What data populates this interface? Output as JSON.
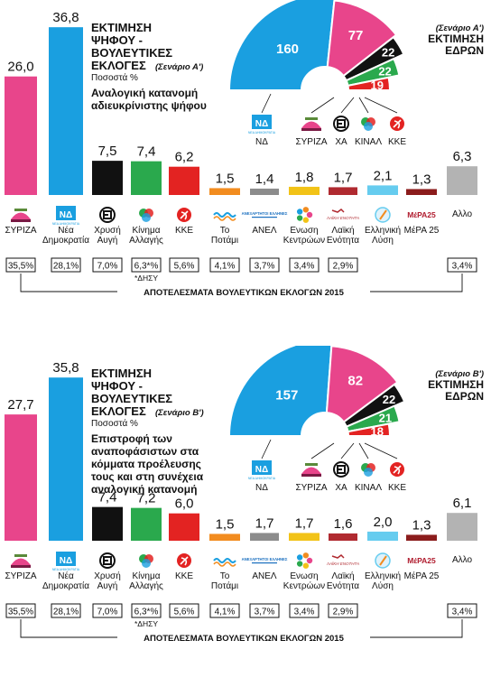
{
  "colors": {
    "syriza": "#e8458b",
    "nd": "#1a9fe0",
    "xa": "#111111",
    "kinal": "#2aa94d",
    "kke": "#e32322",
    "potami": "#f28c1f",
    "anel": "#8c8c8c",
    "enosi": "#f2c317",
    "le": "#b02a30",
    "el": "#66ccef",
    "mera25": "#8b1c1c",
    "allo": "#b3b3b3"
  },
  "parties": [
    {
      "key": "syriza",
      "label": "ΣΥΡΙΖΑ",
      "icon": "syriza-logo-icon"
    },
    {
      "key": "nd",
      "label": "Νέα Δημοκρατία",
      "icon": "nd-logo-icon"
    },
    {
      "key": "xa",
      "label": "Χρυσή Αυγή",
      "icon": "xa-logo-icon"
    },
    {
      "key": "kinal",
      "label": "Κίνημα Αλλαγής",
      "icon": "kinal-logo-icon"
    },
    {
      "key": "kke",
      "label": "ΚΚΕ",
      "icon": "kke-logo-icon"
    },
    {
      "key": "potami",
      "label": "Το Ποτάμι",
      "icon": "potami-logo-icon"
    },
    {
      "key": "anel",
      "label": "ΑΝΕΛ",
      "icon": "anel-logo-icon"
    },
    {
      "key": "enosi",
      "label": "Ενωση Κεντρώων",
      "icon": "enosi-logo-icon"
    },
    {
      "key": "le",
      "label": "Λαϊκή Ενότητα",
      "icon": "le-logo-icon"
    },
    {
      "key": "el",
      "label": "Ελληνική Λύση",
      "icon": "el-logo-icon"
    },
    {
      "key": "mera25",
      "label": "ΜέΡΑ 25",
      "icon": "mera25-logo-icon"
    },
    {
      "key": "allo",
      "label": "Αλλο",
      "icon": ""
    }
  ],
  "logo_text": {
    "nd": "ΝΔ",
    "nd_small": "ΝΕΑ ΔΗΜΟΚΡΑΤΙΑ",
    "anel": "ΑΝΕΞΑΡΤΗΤΟΙ ΕΛΛΗΝΕΣ",
    "le": "ΛΑΪΚΗ ΕΝΟΤΗΤΑ",
    "mera": "ΜέΡΑ25"
  },
  "results_2015": [
    "35,5%",
    "28,1%",
    "7,0%",
    "6,3*%",
    "5,6%",
    "4,1%",
    "3,7%",
    "3,4%",
    "2,9%",
    "",
    "",
    "3,4%"
  ],
  "results_footnote": "*ΔΗΣΥ",
  "results_caption": "ΑΠΟΤΕΛΕΣΜΑΤΑ ΒΟΥΛΕΥΤΙΚΩΝ ΕΚΛΟΓΩΝ 2015",
  "panels": [
    {
      "title": "ΕΚΤΙΜΗΣΗ ΨΗΦΟΥ - ΒΟΥΛΕΥΤΙΚΕΣ ΕΚΛΟΓΕΣ",
      "scenario": "(Σενάριο Α')",
      "unit": "Ποσοστά %",
      "note": "Αναλογική κατανομή αδιευκρίνιστης ψήφου",
      "seats_title_scenario": "(Σενάριο Α')",
      "seats_title": "ΕΚΤΙΜΗΣΗ ΕΔΡΩΝ",
      "seat_labels": [
        "ΝΔ",
        "ΣΥΡΙΖΑ",
        "ΧΑ",
        "ΚΙΝΑΛ",
        "ΚΚΕ"
      ]
    },
    {
      "title": "ΕΚΤΙΜΗΣΗ ΨΗΦΟΥ - ΒΟΥΛΕΥΤΙΚΕΣ ΕΚΛΟΓΕΣ",
      "scenario": "(Σενάριο Β')",
      "unit": "Ποσοστά %",
      "note": "Επιστροφή των αναποφάσιστων στα κόμματα προέλευσης τους και στη συνέχεια αναλογική κατανομή",
      "seats_title_scenario": "(Σενάριο Β')",
      "seats_title": "ΕΚΤΙΜΗΣΗ ΕΔΡΩΝ",
      "seat_labels": [
        "ΝΔ",
        "ΣΥΡΙΖΑ",
        "ΧΑ",
        "ΚΙΝΑΛ",
        "ΚΚΕ"
      ]
    }
  ],
  "chart_data": [
    {
      "type": "bar",
      "title": "ΕΚΤΙΜΗΣΗ ΨΗΦΟΥ - ΒΟΥΛΕΥΤΙΚΕΣ ΕΚΛΟΓΕΣ (Σενάριο Α')",
      "ylabel": "Ποσοστά %",
      "categories": [
        "ΣΥΡΙΖΑ",
        "Νέα Δημοκρατία",
        "Χρυσή Αυγή",
        "Κίνημα Αλλαγής",
        "ΚΚΕ",
        "Το Ποτάμι",
        "ΑΝΕΛ",
        "Ενωση Κεντρώων",
        "Λαϊκή Ενότητα",
        "Ελληνική Λύση",
        "ΜέΡΑ 25",
        "Αλλο"
      ],
      "values": [
        26.0,
        36.8,
        7.5,
        7.4,
        6.2,
        1.5,
        1.4,
        1.8,
        1.7,
        2.1,
        1.3,
        6.3
      ],
      "value_labels": [
        "26,0",
        "36,8",
        "7,5",
        "7,4",
        "6,2",
        "1,5",
        "1,4",
        "1,8",
        "1,7",
        "2,1",
        "1,3",
        "6,3"
      ],
      "ylim": [
        0,
        40
      ]
    },
    {
      "type": "pie",
      "title": "ΕΚΤΙΜΗΣΗ ΕΔΡΩΝ (Σενάριο Α')",
      "categories": [
        "ΝΔ",
        "ΣΥΡΙΖΑ",
        "ΧΑ",
        "ΚΙΝΑΛ",
        "ΚΚΕ"
      ],
      "values": [
        160,
        77,
        22,
        22,
        19
      ]
    },
    {
      "type": "bar",
      "title": "ΕΚΤΙΜΗΣΗ ΨΗΦΟΥ - ΒΟΥΛΕΥΤΙΚΕΣ ΕΚΛΟΓΕΣ (Σενάριο Β')",
      "ylabel": "Ποσοστά %",
      "categories": [
        "ΣΥΡΙΖΑ",
        "Νέα Δημοκρατία",
        "Χρυσή Αυγή",
        "Κίνημα Αλλαγής",
        "ΚΚΕ",
        "Το Ποτάμι",
        "ΑΝΕΛ",
        "Ενωση Κεντρώων",
        "Λαϊκή Ενότητα",
        "Ελληνική Λύση",
        "ΜέΡΑ 25",
        "Αλλο"
      ],
      "values": [
        27.7,
        35.8,
        7.4,
        7.2,
        6.0,
        1.5,
        1.7,
        1.7,
        1.6,
        2.0,
        1.3,
        6.1
      ],
      "value_labels": [
        "27,7",
        "35,8",
        "7,4",
        "7,2",
        "6,0",
        "1,5",
        "1,7",
        "1,7",
        "1,6",
        "2,0",
        "1,3",
        "6,1"
      ],
      "ylim": [
        0,
        40
      ]
    },
    {
      "type": "pie",
      "title": "ΕΚΤΙΜΗΣΗ ΕΔΡΩΝ (Σενάριο Β')",
      "categories": [
        "ΝΔ",
        "ΣΥΡΙΖΑ",
        "ΧΑ",
        "ΚΙΝΑΛ",
        "ΚΚΕ"
      ],
      "values": [
        157,
        82,
        22,
        21,
        18
      ]
    }
  ]
}
